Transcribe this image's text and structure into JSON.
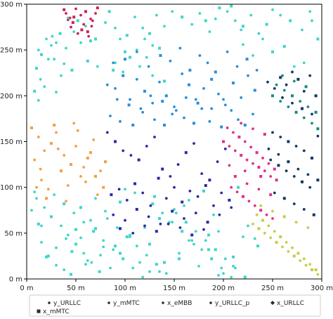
{
  "chart_data": {
    "type": "scatter",
    "title": "",
    "xlabel": "",
    "ylabel": "",
    "xlim": [
      0,
      300
    ],
    "ylim": [
      0,
      300
    ],
    "grid": false,
    "legend_position": "bottom",
    "x_tick_values": [
      0,
      50,
      100,
      150,
      200,
      250,
      300
    ],
    "x_tick_labels": [
      "0 m",
      "50 m",
      "100 m",
      "150 m",
      "200 m",
      "250 m",
      "300 m"
    ],
    "y_tick_values": [
      0,
      50,
      100,
      150,
      200,
      250,
      300
    ],
    "y_tick_labels": [
      "0 m",
      "50 m",
      "100 m",
      "150 m",
      "200 m",
      "250 m",
      "300 m"
    ],
    "series": [
      {
        "name": "y_URLLC",
        "marker": "dot",
        "color": "#2b2b2b",
        "x": [],
        "y": []
      },
      {
        "name": "y_mMTC",
        "marker": "dot",
        "color": "#2b2b2b",
        "x": [],
        "y": []
      },
      {
        "name": "x_eMBB",
        "marker": "dot",
        "color": "#2b2b2b",
        "x": [],
        "y": []
      },
      {
        "name": "y_URLLC_p",
        "marker": "dot",
        "color": "#2b2b2b",
        "x": [],
        "y": []
      },
      {
        "name": "x_URLLC",
        "marker": "diamond",
        "color": "#2b2b2b",
        "x": [],
        "y": []
      },
      {
        "name": "x_mMTC",
        "marker": "square",
        "color": "#2b2b2b",
        "x": [],
        "y": []
      }
    ],
    "point_groups": [
      {
        "color": "#cc2255",
        "x": [
          38,
          40,
          44,
          47,
          50,
          55,
          60,
          65,
          70,
          72,
          45,
          58,
          62,
          67,
          52,
          48,
          66,
          42,
          56,
          63
        ],
        "y": [
          294,
          290,
          285,
          280,
          295,
          288,
          292,
          284,
          290,
          296,
          275,
          278,
          270,
          282,
          268,
          286,
          276,
          283,
          272,
          265
        ]
      },
      {
        "color": "#3dd6c8",
        "x": [
          20,
          26,
          34,
          30,
          12,
          15,
          22,
          25,
          10,
          28,
          42,
          52,
          48,
          60,
          70,
          40,
          55,
          65,
          18,
          35,
          8,
          14,
          38,
          46,
          30,
          12,
          62,
          72,
          80,
          84,
          90,
          95,
          102,
          110,
          118,
          125,
          132,
          140,
          100,
          112,
          122,
          88,
          128,
          148,
          158,
          168,
          176,
          182,
          186,
          192,
          196,
          204,
          212,
          220,
          228,
          236,
          244,
          250,
          258,
          268,
          280,
          288,
          296,
          220,
          240,
          262,
          282,
          230,
          250,
          272,
          290,
          208,
          218,
          120,
          135,
          90,
          98,
          105,
          115,
          128,
          140
        ],
        "y": [
          262,
          265,
          268,
          258,
          250,
          245,
          240,
          255,
          230,
          240,
          285,
          282,
          270,
          276,
          262,
          252,
          258,
          260,
          210,
          222,
          205,
          218,
          235,
          228,
          204,
          195,
          238,
          232,
          280,
          292,
          274,
          262,
          266,
          286,
          274,
          268,
          288,
          276,
          248,
          250,
          242,
          228,
          255,
          292,
          286,
          278,
          290,
          282,
          270,
          284,
          296,
          292,
          282,
          276,
          288,
          268,
          278,
          294,
          288,
          282,
          272,
          292,
          262,
          256,
          262,
          254,
          236,
          244,
          248,
          232,
          282,
          298,
          272,
          262,
          252,
          236,
          226,
          242,
          232,
          222,
          216
        ]
      },
      {
        "color": "#3dd6c8",
        "x": [
          5,
          12,
          8,
          15,
          22,
          30,
          38,
          46,
          55,
          62,
          70,
          78,
          85,
          95,
          105,
          115,
          125,
          135,
          145,
          155,
          165,
          175,
          185,
          195,
          200,
          210,
          220,
          225,
          235,
          10,
          18,
          25,
          35,
          42,
          50,
          58,
          66,
          74,
          82,
          92,
          102,
          112,
          122,
          132,
          142,
          152,
          162,
          172,
          182,
          192,
          202,
          212,
          222,
          232,
          28,
          38,
          48,
          58,
          68,
          78,
          88,
          98,
          108,
          118,
          128,
          138,
          148,
          158,
          168,
          178,
          188,
          198,
          208,
          45,
          60,
          75,
          90,
          105,
          120,
          135,
          150,
          165,
          180,
          195,
          210,
          20,
          30,
          40,
          50,
          65,
          80,
          95,
          110,
          125,
          140,
          155,
          170,
          185,
          15,
          25,
          55,
          70,
          100,
          130,
          160,
          190,
          215
        ],
        "y": [
          75,
          60,
          95,
          40,
          25,
          15,
          10,
          30,
          45,
          20,
          55,
          35,
          12,
          28,
          48,
          18,
          38,
          8,
          62,
          22,
          42,
          14,
          32,
          52,
          6,
          24,
          46,
          58,
          36,
          88,
          78,
          68,
          58,
          48,
          38,
          28,
          18,
          8,
          66,
          56,
          46,
          36,
          26,
          16,
          6,
          72,
          62,
          52,
          42,
          32,
          22,
          12,
          2,
          44,
          92,
          82,
          72,
          62,
          52,
          42,
          32,
          22,
          12,
          2,
          82,
          72,
          62,
          52,
          42,
          32,
          22,
          12,
          2,
          5,
          16,
          26,
          36,
          46,
          56,
          66,
          76,
          86,
          96,
          4,
          14,
          24,
          34,
          44,
          54,
          64,
          74,
          84,
          94,
          8,
          18,
          28,
          38,
          48,
          58,
          68,
          78,
          88,
          98,
          90,
          80,
          70,
          100
        ]
      },
      {
        "color": "#f0a045",
        "x": [
          5,
          12,
          18,
          25,
          30,
          38,
          45,
          50,
          55,
          62,
          68,
          75,
          80,
          15,
          22,
          35,
          42,
          58,
          65,
          72,
          8,
          28,
          48,
          10,
          20,
          40,
          60,
          70,
          32,
          52,
          78,
          14
        ],
        "y": [
          165,
          155,
          140,
          148,
          160,
          135,
          125,
          145,
          112,
          132,
          152,
          118,
          128,
          108,
          98,
          118,
          102,
          122,
          138,
          92,
          130,
          168,
          170,
          100,
          88,
          85,
          106,
          112,
          142,
          162,
          100,
          120
        ]
      },
      {
        "color": "#2a8fd8",
        "x": [
          82,
          90,
          98,
          105,
          112,
          120,
          128,
          135,
          142,
          150,
          158,
          165,
          172,
          180,
          188,
          195,
          202,
          210,
          218,
          225,
          232,
          85,
          95,
          108,
          118,
          130,
          140,
          148,
          160,
          170,
          178,
          186,
          198,
          208,
          215,
          222,
          230,
          88,
          100,
          112,
          124,
          136,
          146,
          156,
          166,
          176,
          184,
          192,
          204,
          214,
          224,
          234,
          92,
          104,
          116,
          126,
          138,
          152,
          162,
          174,
          188,
          200
        ],
        "y": [
          212,
          208,
          222,
          196,
          218,
          205,
          192,
          215,
          200,
          188,
          224,
          212,
          196,
          208,
          218,
          202,
          190,
          214,
          198,
          222,
          206,
          178,
          172,
          168,
          182,
          174,
          168,
          180,
          176,
          170,
          186,
          172,
          166,
          184,
          174,
          168,
          180,
          236,
          240,
          248,
          232,
          244,
          238,
          252,
          228,
          244,
          236,
          226,
          248,
          232,
          240,
          228,
          196,
          190,
          186,
          200,
          194,
          184,
          198,
          192,
          186,
          196
        ]
      },
      {
        "color": "#2a2aa8",
        "x": [
          82,
          90,
          98,
          106,
          114,
          122,
          130,
          138,
          146,
          154,
          162,
          170,
          178,
          186,
          194,
          202,
          86,
          94,
          102,
          110,
          118,
          126,
          134,
          142,
          150,
          158,
          166,
          174,
          182,
          190,
          198,
          206,
          88,
          100,
          112,
          124,
          136,
          148,
          160,
          172,
          184,
          196,
          208,
          95,
          108,
          120,
          132,
          144,
          156,
          168,
          180
        ],
        "y": [
          160,
          150,
          140,
          135,
          130,
          145,
          155,
          120,
          112,
          125,
          138,
          148,
          115,
          108,
          128,
          142,
          92,
          98,
          86,
          104,
          94,
          80,
          110,
          88,
          100,
          84,
          96,
          90,
          102,
          80,
          94,
          86,
          70,
          64,
          76,
          68,
          60,
          74,
          66,
          72,
          62,
          70,
          78,
          55,
          50,
          58,
          52,
          60,
          56,
          48,
          54
        ]
      },
      {
        "color": "#e0308a",
        "x": [
          200,
          206,
          212,
          218,
          224,
          230,
          236,
          242,
          248,
          254,
          204,
          210,
          216,
          222,
          228,
          234,
          240,
          246,
          252,
          208,
          214,
          220,
          226,
          232,
          238,
          244,
          250,
          212,
          224,
          236,
          248,
          218,
          230,
          242,
          206,
          222,
          238
        ],
        "y": [
          150,
          145,
          140,
          135,
          130,
          126,
          122,
          118,
          112,
          108,
          165,
          160,
          155,
          150,
          144,
          138,
          132,
          126,
          120,
          100,
          95,
          90,
          85,
          80,
          75,
          70,
          66,
          112,
          104,
          98,
          92,
          170,
          164,
          158,
          124,
          118,
          112
        ]
      },
      {
        "color": "#0a3a6a",
        "x": [
          245,
          252,
          258,
          264,
          270,
          276,
          282,
          288,
          294,
          250,
          258,
          266,
          274,
          282,
          290,
          296,
          248,
          256,
          264,
          272,
          280,
          288,
          252,
          262,
          272,
          282,
          292,
          246,
          256,
          266,
          276,
          286,
          296,
          260,
          270,
          280,
          290
        ],
        "y": [
          215,
          208,
          220,
          212,
          226,
          218,
          205,
          222,
          200,
          160,
          155,
          150,
          145,
          140,
          132,
          156,
          130,
          124,
          118,
          112,
          106,
          100,
          94,
          88,
          82,
          76,
          70,
          142,
          136,
          128,
          120,
          114,
          108,
          198,
          192,
          186,
          180
        ]
      },
      {
        "color": "#c8cc48",
        "x": [
          230,
          236,
          242,
          248,
          254,
          260,
          266,
          272,
          278,
          284,
          290,
          296,
          234,
          240,
          246,
          252,
          258,
          264,
          270,
          276,
          282,
          288,
          294,
          238,
          250,
          262,
          274,
          286
        ],
        "y": [
          60,
          55,
          50,
          45,
          40,
          35,
          30,
          25,
          20,
          15,
          10,
          5,
          70,
          64,
          58,
          52,
          46,
          40,
          34,
          28,
          22,
          16,
          10,
          80,
          74,
          68,
          62,
          56
        ]
      },
      {
        "color": "#1a8a7a",
        "x": [
          250,
          258,
          266,
          274,
          282,
          290,
          296,
          254,
          262,
          270,
          278,
          286,
          294,
          260,
          272,
          284
        ],
        "y": [
          200,
          194,
          188,
          182,
          176,
          170,
          164,
          212,
          206,
          200,
          194,
          188,
          182,
          222,
          216,
          210
        ]
      }
    ]
  }
}
